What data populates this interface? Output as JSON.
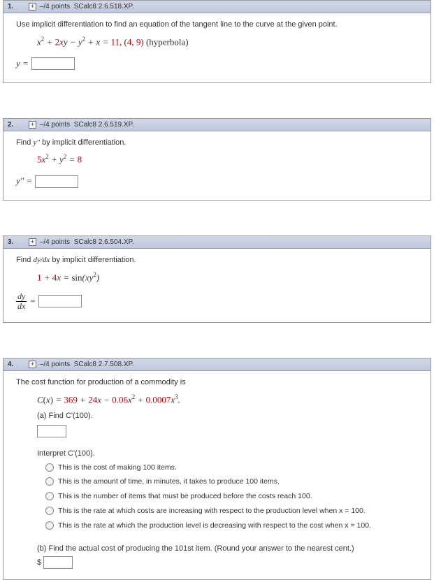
{
  "questions": [
    {
      "num": "1.",
      "points": "–/4 points",
      "ref": "SCalc8 2.6.518.XP.",
      "prompt": "Use implicit differentiation to find an equation of the tangent line to the curve at the given point.",
      "equation_html": "x<span class='sup'>2</span> + <span class='num'>2</span>xy − y<span class='sup'>2</span> + x = <span class='num'>11</span>, <span class='pt'>(<span class='num'>4</span>, <span class='num'>9</span>)</span>  <span class='plain'>(hyperbola)</span>",
      "answer_label": "y ="
    },
    {
      "num": "2.",
      "points": "–/4 points",
      "ref": "SCalc8 2.6.519.XP.",
      "prompt_html": "Find  <span class='mini-italic'>y''</span>  by implicit differentiation.",
      "equation_html": "<span class='num'>5</span>x<span class='sup'>2</span> + y<span class='sup'>2</span> = <span class='num'>8</span>",
      "answer_label": "y'' ="
    },
    {
      "num": "3.",
      "points": "–/4 points",
      "ref": "SCalc8 2.6.504.XP.",
      "prompt_html": "Find <span class='mini-italic'>dy/dx</span> by implicit differentiation.",
      "equation_html": "<span class='num'>1</span> + <span class='num'>4</span>x = <span class='plain'>sin</span>(xy<span class='sup'>2</span>)"
    },
    {
      "num": "4.",
      "points": "–/4 points",
      "ref": "SCalc8 2.7.508.XP.",
      "prompt": "The cost function for production of a commodity is",
      "equation_html": "C<span class='plain'>(</span>x<span class='plain'>)</span> = <span class='num'>369</span> + <span class='num'>24</span>x − <span class='num'>0.06</span>x<span class='sup'>2</span> + <span class='num'>0.0007</span>x<span class='sup'>3</span>.",
      "sub_a": "(a) Find C'(100).",
      "interpret": "Interpret  C'(100).",
      "options": [
        "This is the cost of making 100 items.",
        "This is the amount of time, in minutes, it takes to produce 100 items.",
        "This is the number of items that must be produced before the costs reach 100.",
        "This is the rate at which costs are increasing with respect to the production level when x = 100.",
        "This is the rate at which the production level is decreasing with respect to the cost when x = 100."
      ],
      "sub_b": "(b) Find the actual cost of producing the 101st item. (Round your answer to the nearest cent.)",
      "dollar": "$"
    }
  ]
}
